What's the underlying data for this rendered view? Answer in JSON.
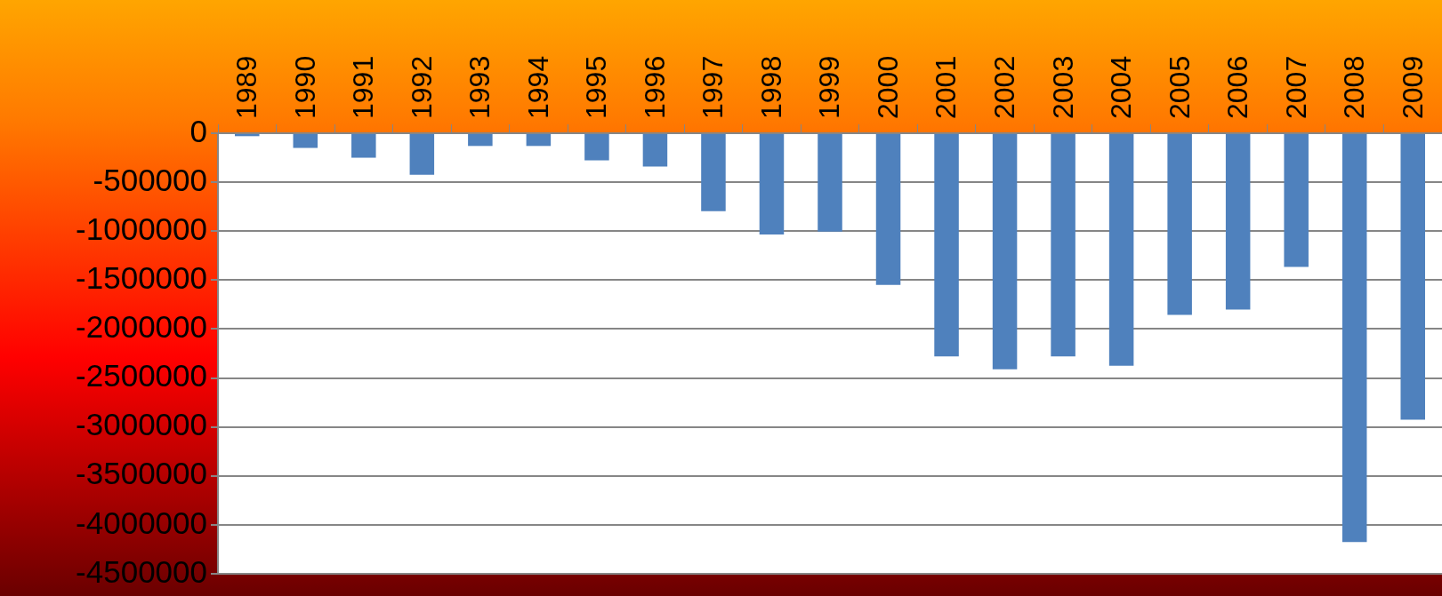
{
  "chart_data": {
    "type": "bar",
    "categories": [
      "1989",
      "1990",
      "1991",
      "1992",
      "1993",
      "1994",
      "1995",
      "1996",
      "1997",
      "1998",
      "1999",
      "2000",
      "2001",
      "2002",
      "2003",
      "2004",
      "2005",
      "2006",
      "2007",
      "2008",
      "2009"
    ],
    "values": [
      -30000,
      -150000,
      -250000,
      -425000,
      -130000,
      -130000,
      -277000,
      -340000,
      -795000,
      -1035000,
      -1005000,
      -1550000,
      -2280000,
      -2410000,
      -2280000,
      -2375000,
      -1855000,
      -1800000,
      -1365000,
      -4175000,
      -2925000
    ],
    "color": "#4f81bd",
    "ylim": [
      -4500000,
      0
    ],
    "yticks": [
      0,
      -500000,
      -1000000,
      -1500000,
      -2000000,
      -2500000,
      -3000000,
      -3500000,
      -4000000,
      -4500000
    ],
    "grid": "y",
    "legend": false
  }
}
